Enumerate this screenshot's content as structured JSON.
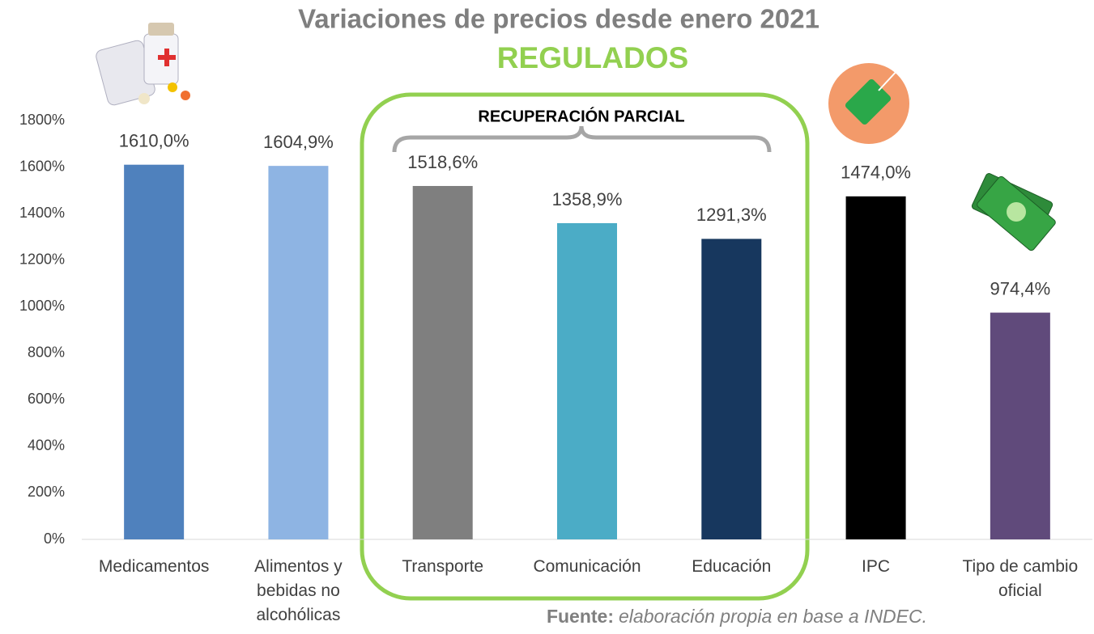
{
  "chart_data": {
    "type": "bar",
    "title": "Variaciones de precios desde enero 2021",
    "subtitle": "REGULADOS",
    "annotation": "RECUPERACIÓN PARCIAL",
    "source_label": "Fuente:",
    "source_text": "elaboración propia en base a INDEC.",
    "categories": [
      "Medicamentos",
      "Alimentos y bebidas no alcohólicas",
      "Transporte",
      "Comunicación",
      "Educación",
      "IPC",
      "Tipo de cambio oficial"
    ],
    "values": [
      1610.0,
      1604.9,
      1518.6,
      1358.9,
      1291.3,
      1474.0,
      974.4
    ],
    "value_labels": [
      "1610,0%",
      "1604,9%",
      "1518,6%",
      "1358,9%",
      "1291,3%",
      "1474,0%",
      "974,4%"
    ],
    "colors": [
      "#4f81bd",
      "#8eb4e3",
      "#7f7f7f",
      "#4bacc6",
      "#17375e",
      "#000000",
      "#604a7b"
    ],
    "ylim": [
      0,
      1800
    ],
    "yticks": [
      {
        "value": 0,
        "label": "0%"
      },
      {
        "value": 200,
        "label": "200%"
      },
      {
        "value": 400,
        "label": "400%"
      },
      {
        "value": 600,
        "label": "600%"
      },
      {
        "value": 800,
        "label": "800%"
      },
      {
        "value": 1000,
        "label": "1000%"
      },
      {
        "value": 1200,
        "label": "1200%"
      },
      {
        "value": 1400,
        "label": "1400%"
      },
      {
        "value": 1600,
        "label": "1600%"
      },
      {
        "value": 1800,
        "label": "1800%"
      }
    ],
    "grid": false
  }
}
